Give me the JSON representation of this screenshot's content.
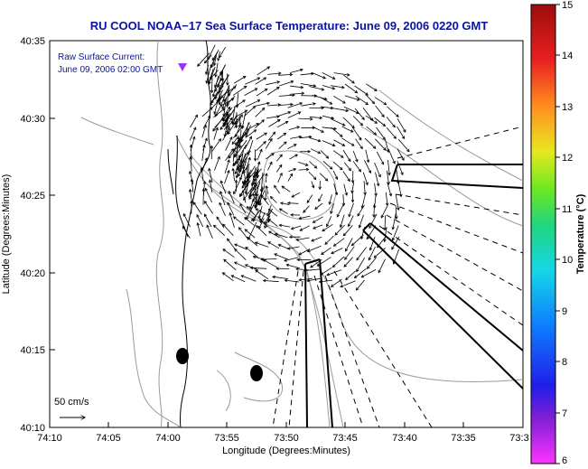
{
  "title": "RU COOL  NOAA−17  Sea Surface Temperature:  June 09, 2006 0220 GMT",
  "current_note": {
    "line1": "Raw Surface Current:",
    "line2": "June 09, 2006 02:00 GMT"
  },
  "scale_label": "50 cm/s",
  "x_axis": {
    "title": "Longitude (Degrees:Minutes)",
    "ticks": [
      "74:10",
      "74:05",
      "74:00",
      "73:55",
      "73:50",
      "73:45",
      "73:40",
      "73:35",
      "73:3"
    ]
  },
  "y_axis": {
    "title": "Latitude (Degrees:Minutes)",
    "ticks": [
      "40:35",
      "40:30",
      "40:25",
      "40:20",
      "40:15",
      "40:10"
    ]
  },
  "colorbar": {
    "title": "Temperature (°C)",
    "ticks": [
      "15",
      "14",
      "13",
      "12",
      "11",
      "10",
      "9",
      "8",
      "7",
      "6"
    ],
    "min": 6,
    "max": 15,
    "colors": [
      "#ff33ff",
      "#7d1fd6",
      "#1f1fe8",
      "#0d7dff",
      "#16d6e8",
      "#1fd67d",
      "#6fe81f",
      "#e8e81f",
      "#ff8c1f",
      "#e81f1f",
      "#9e0d0d"
    ]
  },
  "colors": {
    "title": "#0a14a0",
    "note": "#0a14a0",
    "contours": "#9a9a9a",
    "vectors": "#000000",
    "marker": "#a030ff"
  }
}
